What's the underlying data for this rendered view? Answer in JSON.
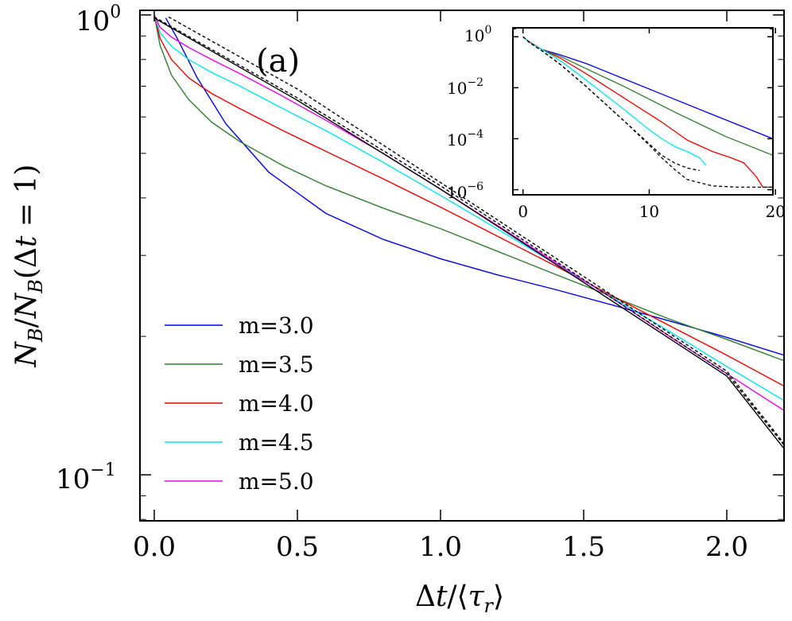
{
  "chart_data": [
    {
      "type": "line",
      "panel_label": "(a)",
      "xlabel_parts": {
        "delta": "Δ",
        "t": "t",
        "slash": "/⟨",
        "tau": "τ",
        "tau_sub": "r",
        "close": "⟩"
      },
      "ylabel_parts": {
        "n1": "N",
        "sub1": "B",
        "slash": "/",
        "n2": "N",
        "sub2": "B",
        "open": "(Δ",
        "t": "t",
        "eq": " = 1)"
      },
      "xlim": [
        -0.05,
        2.2
      ],
      "ylim_log10": [
        -1.1,
        0.01
      ],
      "xticks": [
        0.0,
        0.5,
        1.0,
        1.5,
        2.0
      ],
      "xtick_labels": [
        "0.0",
        "0.5",
        "1.0",
        "1.5",
        "2.0"
      ],
      "yticks_log10": [
        0,
        -1
      ],
      "ytick_base": "10",
      "ytick_exps": [
        "0",
        "−1"
      ],
      "legend_position": "lower-left",
      "series": [
        {
          "name": "m=3.0",
          "color": "#0000ee",
          "x": [
            0.04,
            0.08,
            0.15,
            0.25,
            0.4,
            0.6,
            0.8,
            1.0,
            1.2,
            1.4,
            1.6,
            1.8,
            2.0,
            2.2
          ],
          "y": [
            0.985,
            0.89,
            0.73,
            0.58,
            0.455,
            0.37,
            0.325,
            0.295,
            0.272,
            0.253,
            0.234,
            0.216,
            0.199,
            0.182
          ]
        },
        {
          "name": "m=3.5",
          "color": "#2e7d2e",
          "x": [
            0.0,
            0.02,
            0.06,
            0.12,
            0.2,
            0.3,
            0.45,
            0.6,
            0.8,
            1.0,
            1.2,
            1.4,
            1.6,
            1.8,
            2.0,
            2.2
          ],
          "y": [
            1.0,
            0.86,
            0.74,
            0.655,
            0.585,
            0.53,
            0.47,
            0.425,
            0.38,
            0.343,
            0.306,
            0.273,
            0.244,
            0.218,
            0.197,
            0.177
          ]
        },
        {
          "name": "m=4.0",
          "color": "#ee0000",
          "x": [
            0.0,
            0.02,
            0.06,
            0.12,
            0.2,
            0.3,
            0.45,
            0.6,
            0.8,
            1.0,
            1.2,
            1.4,
            1.6,
            1.8,
            2.0,
            2.2
          ],
          "y": [
            1.0,
            0.89,
            0.8,
            0.73,
            0.675,
            0.625,
            0.56,
            0.505,
            0.44,
            0.382,
            0.33,
            0.285,
            0.245,
            0.211,
            0.182,
            0.156
          ]
        },
        {
          "name": "m=4.5",
          "color": "#00e5ee",
          "x": [
            0.0,
            0.02,
            0.06,
            0.12,
            0.2,
            0.3,
            0.45,
            0.6,
            0.8,
            1.0,
            1.2,
            1.4,
            1.6,
            1.8,
            2.0,
            2.2
          ],
          "y": [
            1.0,
            0.915,
            0.855,
            0.8,
            0.75,
            0.7,
            0.625,
            0.56,
            0.478,
            0.405,
            0.342,
            0.288,
            0.243,
            0.205,
            0.172,
            0.145
          ]
        },
        {
          "name": "m=5.0",
          "color": "#ee00ee",
          "x": [
            0.0,
            0.02,
            0.06,
            0.12,
            0.2,
            0.3,
            0.45,
            0.6,
            0.8,
            1.0,
            1.2,
            1.4,
            1.6,
            1.8,
            2.0,
            2.2
          ],
          "y": [
            1.0,
            0.94,
            0.895,
            0.85,
            0.8,
            0.745,
            0.665,
            0.59,
            0.5,
            0.418,
            0.348,
            0.29,
            0.242,
            0.2,
            0.166,
            0.138
          ]
        },
        {
          "name": "",
          "color": "#000000",
          "dash": "none",
          "x": [
            0.0,
            0.5,
            1.0,
            1.5,
            2.0,
            2.2
          ],
          "y": [
            0.985,
            0.652,
            0.418,
            0.262,
            0.164,
            0.114
          ]
        },
        {
          "name": "",
          "color": "#000000",
          "dash": "4,3",
          "x": [
            0.0,
            0.5,
            1.0,
            1.5,
            2.0,
            2.2
          ],
          "y": [
            0.99,
            0.66,
            0.425,
            0.266,
            0.166,
            0.116
          ]
        },
        {
          "name": "",
          "color": "#000000",
          "dash": "4,3",
          "x": [
            0.05,
            0.5,
            1.0,
            1.5,
            2.0,
            2.2
          ],
          "y": [
            0.99,
            0.69,
            0.432,
            0.27,
            0.168,
            0.117
          ]
        }
      ]
    },
    {
      "type": "line",
      "panel": "inset",
      "xlim": [
        -0.8,
        19.8
      ],
      "ylim_log10": [
        -6.2,
        0.35
      ],
      "xticks": [
        0,
        10,
        20
      ],
      "xtick_labels": [
        "0",
        "10",
        "20"
      ],
      "yticks_log10": [
        0,
        -2,
        -4,
        -6
      ],
      "ytick_base": "10",
      "ytick_exps": [
        "0",
        "−2",
        "−4",
        "−6"
      ],
      "series": [
        {
          "name": "m=3.0",
          "color": "#0000ee",
          "x": [
            0,
            0.5,
            1.5,
            3,
            5,
            8,
            12,
            16,
            19.8
          ],
          "y_log10": [
            0,
            -0.2,
            -0.5,
            -0.72,
            -1.05,
            -1.65,
            -2.45,
            -3.25,
            -4.0
          ]
        },
        {
          "name": "m=3.5",
          "color": "#2e7d2e",
          "x": [
            0,
            0.5,
            1.5,
            3,
            5,
            8,
            12,
            16,
            19.8
          ],
          "y_log10": [
            0,
            -0.2,
            -0.5,
            -0.78,
            -1.25,
            -1.95,
            -2.95,
            -3.9,
            -4.65
          ]
        },
        {
          "name": "m=4.0",
          "color": "#ee0000",
          "x": [
            0,
            0.5,
            1.5,
            3,
            5,
            8,
            11,
            13,
            15,
            16.5,
            17.5,
            18.5,
            19,
            19.8
          ],
          "y_log10": [
            0,
            -0.2,
            -0.5,
            -0.85,
            -1.45,
            -2.4,
            -3.35,
            -4.05,
            -4.5,
            -4.75,
            -4.95,
            -5.5,
            -5.9,
            -5.9
          ]
        },
        {
          "name": "m=4.5",
          "color": "#00e5ee",
          "x": [
            0,
            0.5,
            1.5,
            3,
            5,
            8,
            10,
            11,
            12,
            13,
            14,
            14.5
          ],
          "y_log10": [
            0,
            -0.22,
            -0.5,
            -0.95,
            -1.7,
            -2.85,
            -3.65,
            -4.0,
            -4.3,
            -4.5,
            -4.75,
            -5.05
          ]
        },
        {
          "name": "",
          "color": "#000000",
          "dash": "4,3",
          "x": [
            0,
            0.5,
            1.5,
            3,
            5,
            8,
            10,
            11,
            12,
            13,
            14
          ],
          "y_log10": [
            0,
            -0.22,
            -0.55,
            -1.1,
            -1.95,
            -3.3,
            -4.2,
            -4.65,
            -4.95,
            -5.15,
            -5.25
          ]
        },
        {
          "name": "",
          "color": "#000000",
          "dash": "4,3",
          "x": [
            0,
            0.5,
            1.5,
            3,
            5,
            8,
            10,
            11,
            12,
            13,
            15,
            17,
            19.8
          ],
          "y_log10": [
            0,
            -0.22,
            -0.55,
            -1.1,
            -1.95,
            -3.3,
            -4.25,
            -4.75,
            -5.2,
            -5.6,
            -5.85,
            -5.9,
            -5.9
          ]
        }
      ]
    }
  ]
}
